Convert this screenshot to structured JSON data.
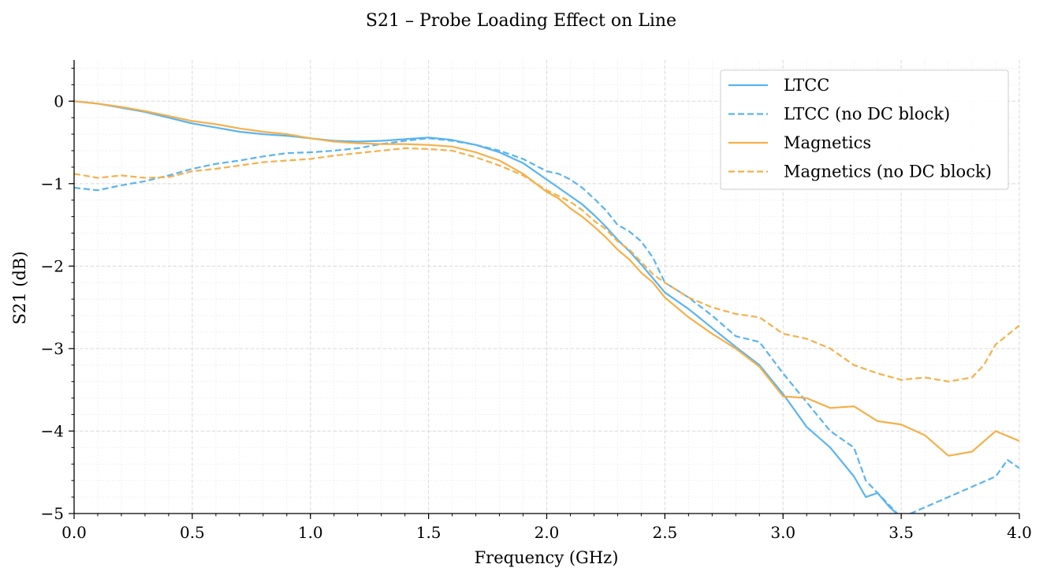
{
  "chart_data": {
    "type": "line",
    "title": "S21 – Probe Loading Effect on Line",
    "xlabel": "Frequency (GHz)",
    "ylabel": "S21 (dB)",
    "xlim": [
      0.0,
      4.0
    ],
    "ylim": [
      -5,
      0.5
    ],
    "x_ticks": [
      0.0,
      0.5,
      1.0,
      1.5,
      2.0,
      2.5,
      3.0,
      3.5,
      4.0
    ],
    "x_tick_labels": [
      "0.0",
      "0.5",
      "1.0",
      "1.5",
      "2.0",
      "2.5",
      "3.0",
      "3.5",
      "4.0"
    ],
    "y_ticks": [
      0,
      -1,
      -2,
      -3,
      -4,
      -5
    ],
    "y_tick_labels": [
      "0",
      "−1",
      "−2",
      "−3",
      "−4",
      "−5"
    ],
    "grid": "on",
    "legend_position": "top-right",
    "series": [
      {
        "name": "LTCC",
        "color": "#5ab4f0",
        "dash": "solid",
        "x": [
          0.0,
          0.1,
          0.2,
          0.3,
          0.4,
          0.5,
          0.6,
          0.7,
          0.8,
          0.9,
          1.0,
          1.1,
          1.2,
          1.3,
          1.4,
          1.5,
          1.6,
          1.7,
          1.8,
          1.9,
          2.0,
          2.05,
          2.1,
          2.15,
          2.2,
          2.25,
          2.3,
          2.35,
          2.4,
          2.45,
          2.5,
          2.6,
          2.7,
          2.8,
          2.9,
          3.0,
          3.1,
          3.2,
          3.3,
          3.35,
          3.4,
          3.45,
          3.5
        ],
        "y": [
          0.0,
          -0.03,
          -0.08,
          -0.13,
          -0.2,
          -0.27,
          -0.32,
          -0.37,
          -0.4,
          -0.42,
          -0.45,
          -0.48,
          -0.49,
          -0.48,
          -0.46,
          -0.44,
          -0.47,
          -0.53,
          -0.62,
          -0.75,
          -0.95,
          -1.05,
          -1.15,
          -1.25,
          -1.38,
          -1.52,
          -1.68,
          -1.82,
          -1.98,
          -2.15,
          -2.32,
          -2.52,
          -2.75,
          -2.98,
          -3.2,
          -3.55,
          -3.95,
          -4.2,
          -4.55,
          -4.8,
          -4.75,
          -4.92,
          -5.05
        ]
      },
      {
        "name": "LTCC (no DC block)",
        "color": "#5ab4f0",
        "dash": "dashed",
        "x": [
          0.0,
          0.1,
          0.2,
          0.3,
          0.4,
          0.5,
          0.6,
          0.7,
          0.8,
          0.9,
          1.0,
          1.1,
          1.2,
          1.3,
          1.4,
          1.5,
          1.6,
          1.7,
          1.8,
          1.9,
          2.0,
          2.05,
          2.1,
          2.15,
          2.2,
          2.25,
          2.3,
          2.35,
          2.4,
          2.45,
          2.5,
          2.6,
          2.7,
          2.8,
          2.9,
          3.0,
          3.1,
          3.2,
          3.3,
          3.35,
          3.4,
          3.45,
          3.5,
          3.9,
          3.95,
          4.0
        ],
        "y": [
          -1.05,
          -1.08,
          -1.02,
          -0.97,
          -0.9,
          -0.82,
          -0.76,
          -0.72,
          -0.67,
          -0.63,
          -0.62,
          -0.6,
          -0.57,
          -0.52,
          -0.48,
          -0.45,
          -0.48,
          -0.53,
          -0.6,
          -0.7,
          -0.85,
          -0.88,
          -0.95,
          -1.05,
          -1.18,
          -1.32,
          -1.5,
          -1.58,
          -1.7,
          -1.9,
          -2.2,
          -2.38,
          -2.6,
          -2.85,
          -2.92,
          -3.3,
          -3.65,
          -4.0,
          -4.2,
          -4.6,
          -4.75,
          -4.9,
          -5.05,
          -4.55,
          -4.35,
          -4.45
        ]
      },
      {
        "name": "Magnetics",
        "color": "#f5b04a",
        "dash": "solid",
        "x": [
          0.0,
          0.1,
          0.2,
          0.3,
          0.4,
          0.5,
          0.6,
          0.7,
          0.8,
          0.9,
          1.0,
          1.1,
          1.2,
          1.3,
          1.4,
          1.5,
          1.6,
          1.7,
          1.8,
          1.9,
          2.0,
          2.05,
          2.1,
          2.15,
          2.2,
          2.25,
          2.3,
          2.35,
          2.4,
          2.45,
          2.5,
          2.6,
          2.7,
          2.8,
          2.9,
          3.0,
          3.1,
          3.2,
          3.3,
          3.4,
          3.5,
          3.6,
          3.7,
          3.8,
          3.9,
          4.0
        ],
        "y": [
          0.0,
          -0.03,
          -0.07,
          -0.12,
          -0.18,
          -0.24,
          -0.28,
          -0.33,
          -0.37,
          -0.4,
          -0.45,
          -0.49,
          -0.51,
          -0.52,
          -0.52,
          -0.53,
          -0.55,
          -0.62,
          -0.72,
          -0.88,
          -1.1,
          -1.18,
          -1.3,
          -1.4,
          -1.52,
          -1.65,
          -1.8,
          -1.92,
          -2.08,
          -2.2,
          -2.38,
          -2.62,
          -2.82,
          -3.0,
          -3.22,
          -3.58,
          -3.6,
          -3.72,
          -3.7,
          -3.88,
          -3.92,
          -4.05,
          -4.3,
          -4.25,
          -4.0,
          -4.12
        ]
      },
      {
        "name": "Magnetics (no DC block)",
        "color": "#f5b04a",
        "dash": "dashed",
        "x": [
          0.0,
          0.1,
          0.2,
          0.3,
          0.4,
          0.5,
          0.6,
          0.7,
          0.8,
          0.9,
          1.0,
          1.1,
          1.2,
          1.3,
          1.4,
          1.5,
          1.6,
          1.7,
          1.8,
          1.9,
          2.0,
          2.05,
          2.1,
          2.15,
          2.2,
          2.25,
          2.3,
          2.35,
          2.4,
          2.45,
          2.5,
          2.6,
          2.7,
          2.8,
          2.9,
          3.0,
          3.1,
          3.2,
          3.3,
          3.4,
          3.5,
          3.6,
          3.7,
          3.8,
          3.85,
          3.9,
          4.0
        ],
        "y": [
          -0.88,
          -0.93,
          -0.9,
          -0.93,
          -0.92,
          -0.85,
          -0.82,
          -0.78,
          -0.74,
          -0.72,
          -0.7,
          -0.66,
          -0.63,
          -0.6,
          -0.57,
          -0.58,
          -0.6,
          -0.68,
          -0.78,
          -0.9,
          -1.08,
          -1.15,
          -1.22,
          -1.32,
          -1.45,
          -1.55,
          -1.7,
          -1.8,
          -1.95,
          -2.1,
          -2.2,
          -2.38,
          -2.5,
          -2.58,
          -2.62,
          -2.82,
          -2.88,
          -3.0,
          -3.2,
          -3.3,
          -3.38,
          -3.35,
          -3.4,
          -3.35,
          -3.2,
          -2.95,
          -2.72
        ]
      }
    ]
  }
}
